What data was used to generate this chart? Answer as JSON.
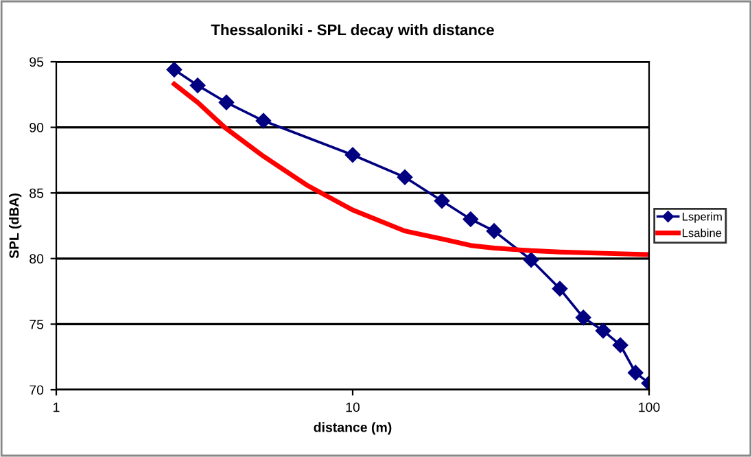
{
  "chart_data": {
    "type": "line",
    "title": "Thessaloniki - SPL decay with distance",
    "xlabel": "distance (m)",
    "ylabel": "SPL (dBA)",
    "log": "x",
    "xlim": [
      1,
      100
    ],
    "xticks": [
      1,
      10,
      100
    ],
    "ylim": [
      70,
      95
    ],
    "yticks": [
      70,
      75,
      80,
      85,
      90,
      95
    ],
    "grid": "y",
    "legend": "right",
    "series": [
      {
        "name": "Lsperim",
        "color": "#000080",
        "marker": "diamond",
        "x": [
          2.5,
          3,
          3.75,
          5,
          10,
          15,
          20,
          25,
          30,
          40,
          50,
          60,
          70,
          80,
          90,
          100
        ],
        "values": [
          94.4,
          93.2,
          91.9,
          90.5,
          87.9,
          86.2,
          84.4,
          83.0,
          82.1,
          79.9,
          77.7,
          75.5,
          74.5,
          73.4,
          71.3,
          70.5
        ]
      },
      {
        "name": "Lsabine",
        "color": "#ff0000",
        "marker": "none",
        "x": [
          2.5,
          3,
          3.7,
          5,
          7,
          10,
          15,
          20,
          25,
          30,
          40,
          50,
          70,
          100
        ],
        "values": [
          93.3,
          91.9,
          90.0,
          87.8,
          85.6,
          83.7,
          82.1,
          81.5,
          81.0,
          80.8,
          80.6,
          80.5,
          80.4,
          80.3
        ]
      }
    ]
  }
}
